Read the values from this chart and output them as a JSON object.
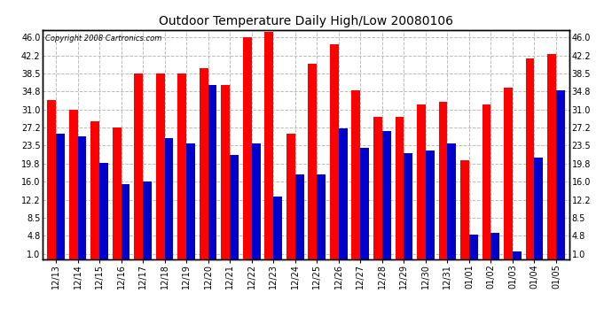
{
  "title": "Outdoor Temperature Daily High/Low 20080106",
  "copyright": "Copyright 2008 Cartronics.com",
  "dates": [
    "12/13",
    "12/14",
    "12/15",
    "12/16",
    "12/17",
    "12/18",
    "12/19",
    "12/20",
    "12/21",
    "12/22",
    "12/23",
    "12/24",
    "12/25",
    "12/26",
    "12/27",
    "12/28",
    "12/29",
    "12/30",
    "12/31",
    "01/01",
    "01/02",
    "01/03",
    "01/04",
    "01/05"
  ],
  "highs": [
    33.0,
    31.0,
    28.5,
    27.2,
    38.5,
    38.5,
    38.5,
    39.5,
    36.0,
    46.0,
    47.0,
    26.0,
    40.5,
    44.5,
    35.0,
    29.5,
    29.5,
    32.0,
    32.5,
    20.5,
    32.0,
    35.5,
    41.5,
    42.5
  ],
  "lows": [
    26.0,
    25.5,
    20.0,
    15.5,
    16.0,
    25.0,
    24.0,
    36.0,
    21.5,
    24.0,
    13.0,
    17.5,
    17.5,
    27.0,
    23.0,
    26.5,
    22.0,
    22.5,
    24.0,
    5.0,
    5.5,
    1.5,
    21.0,
    35.0
  ],
  "high_color": "#ff0000",
  "low_color": "#0000cc",
  "bg_color": "#ffffff",
  "grid_color": "#bbbbbb",
  "yticks": [
    1.0,
    4.8,
    8.5,
    12.2,
    16.0,
    19.8,
    23.5,
    27.2,
    31.0,
    34.8,
    38.5,
    42.2,
    46.0
  ],
  "ylim": [
    0.0,
    47.5
  ],
  "bar_width": 0.4,
  "title_fontsize": 10,
  "tick_fontsize": 7,
  "copyright_fontsize": 6
}
